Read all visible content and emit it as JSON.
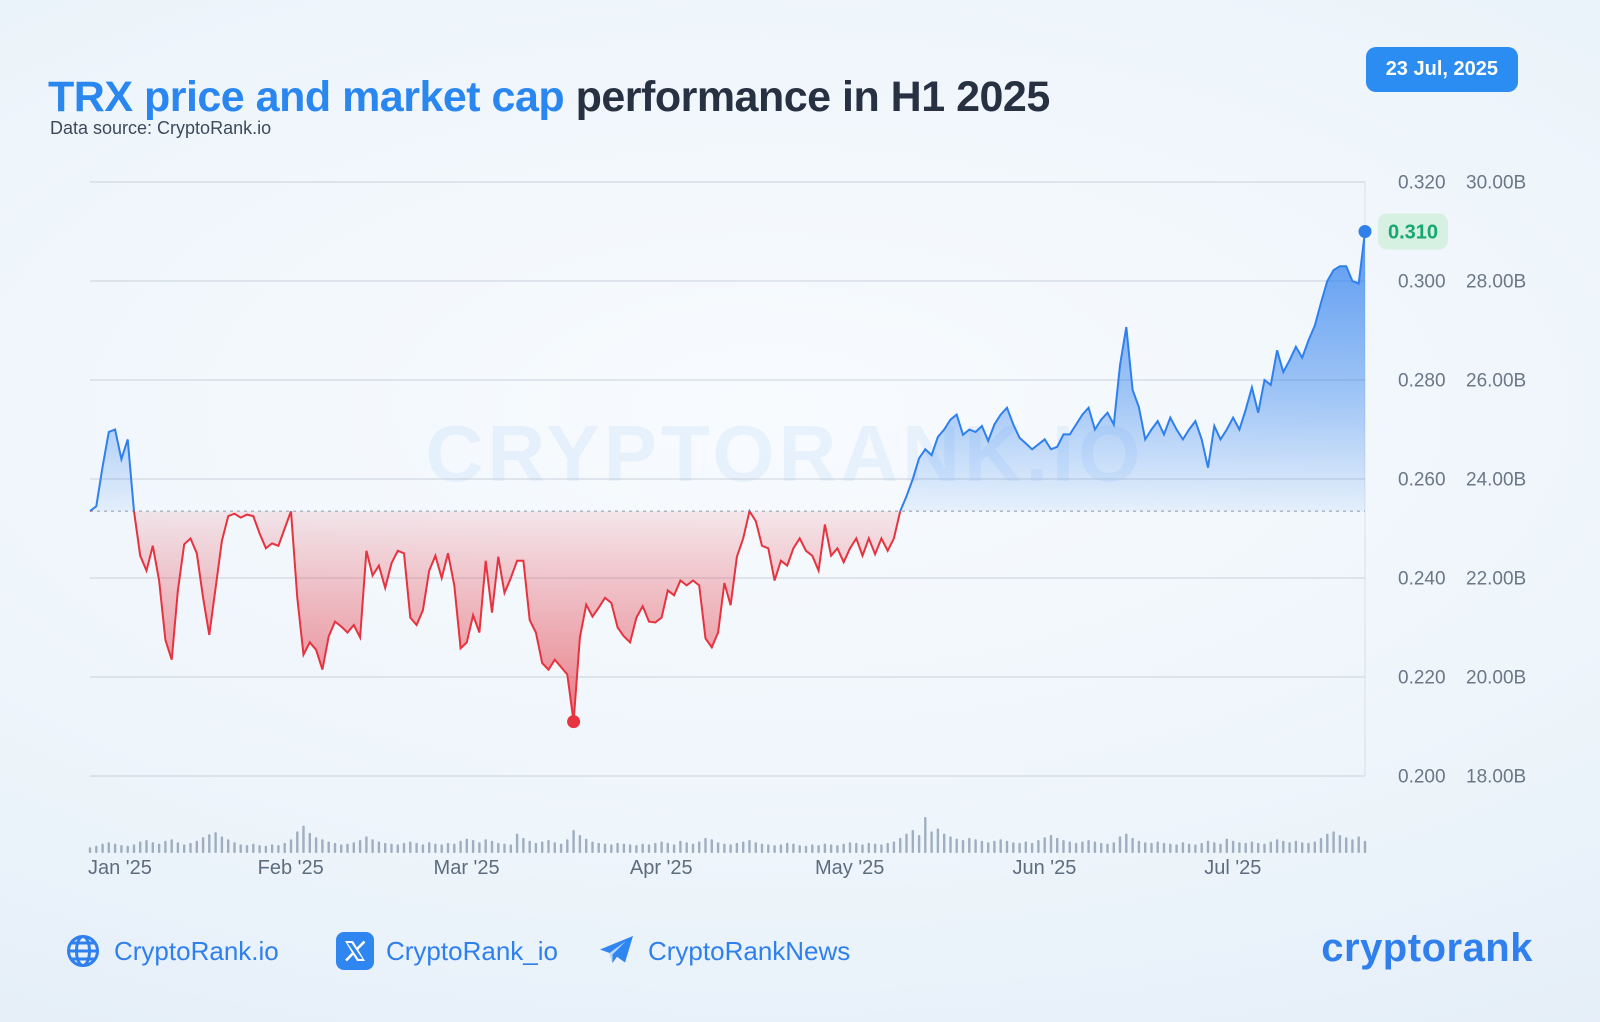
{
  "header": {
    "title_highlight": "TRX price and market cap",
    "title_rest": " performance in H1 2025",
    "subtitle": "Data source: CryptoRank.io",
    "date_badge": "23 Jul, 2025"
  },
  "footer": {
    "links": [
      {
        "icon": "globe-icon",
        "label": "CryptoRank.io"
      },
      {
        "icon": "x-icon",
        "label": "CryptoRank_io"
      },
      {
        "icon": "telegram-icon",
        "label": "CryptoRankNews"
      }
    ],
    "logo": "cryptorank"
  },
  "colors": {
    "accent_blue": "#2b87f0",
    "line_blue": "#2f80ed",
    "line_red": "#e5333f",
    "badge_green_text": "#15a870",
    "badge_green_bg": "#d6f0e1",
    "axis_text": "#6b7787",
    "month_text": "#5d6c7f",
    "gridline": "#c2cad5",
    "volume_bar": "#8b9cb2",
    "watermark_blue": "#2f86f0"
  },
  "chart_data": {
    "type": "area",
    "title": "TRX price and market cap performance in H1 2025",
    "start_date": "2025-01-01",
    "end_date": "2025-07-23",
    "months": [
      "Jan '25",
      "Feb '25",
      "Mar '25",
      "Apr '25",
      "May '25",
      "Jun '25",
      "Jul '25"
    ],
    "month_start_day_index": [
      0,
      31,
      59,
      90,
      120,
      151,
      181
    ],
    "price_ticks": [
      "0.320",
      "0.300",
      "0.280",
      "0.260",
      "0.240",
      "0.220",
      "0.200"
    ],
    "mcap_ticks": [
      "30.00B",
      "28.00B",
      "26.00B",
      "24.00B",
      "22.00B",
      "20.00B",
      "18.00B"
    ],
    "price_axis_range": [
      0.2,
      0.32
    ],
    "baseline_price": 0.2535,
    "current_price_label": "0.310",
    "min_marker": {
      "day_index": 77,
      "price": 0.211
    },
    "last_marker": {
      "day_index": 203,
      "price": 0.31
    },
    "watermark": "CRYPTORANK.IO",
    "grid": true,
    "legend": "none",
    "prices": [
      0.2535,
      0.2545,
      0.2625,
      0.2695,
      0.27,
      0.264,
      0.268,
      0.2535,
      0.2445,
      0.2415,
      0.2465,
      0.2395,
      0.2275,
      0.2235,
      0.2375,
      0.2468,
      0.248,
      0.245,
      0.236,
      0.2285,
      0.238,
      0.2475,
      0.2525,
      0.253,
      0.2522,
      0.2528,
      0.2525,
      0.249,
      0.246,
      0.247,
      0.2465,
      0.25,
      0.2535,
      0.236,
      0.2245,
      0.227,
      0.2255,
      0.2215,
      0.2282,
      0.2312,
      0.2302,
      0.229,
      0.2305,
      0.228,
      0.2455,
      0.2405,
      0.2425,
      0.238,
      0.243,
      0.2455,
      0.245,
      0.232,
      0.2305,
      0.2335,
      0.2415,
      0.2445,
      0.24,
      0.245,
      0.2385,
      0.2258,
      0.227,
      0.2325,
      0.229,
      0.2435,
      0.233,
      0.2443,
      0.237,
      0.24,
      0.2435,
      0.2435,
      0.2315,
      0.229,
      0.2228,
      0.2215,
      0.2235,
      0.222,
      0.2205,
      0.211,
      0.228,
      0.2346,
      0.2322,
      0.234,
      0.236,
      0.235,
      0.23,
      0.2282,
      0.227,
      0.232,
      0.2343,
      0.2312,
      0.231,
      0.232,
      0.2375,
      0.2365,
      0.2395,
      0.2385,
      0.2395,
      0.2385,
      0.2278,
      0.226,
      0.229,
      0.239,
      0.2345,
      0.2443,
      0.248,
      0.2535,
      0.2515,
      0.2465,
      0.246,
      0.2395,
      0.2435,
      0.2425,
      0.246,
      0.248,
      0.2455,
      0.2445,
      0.2415,
      0.2508,
      0.2445,
      0.246,
      0.2432,
      0.246,
      0.248,
      0.2445,
      0.248,
      0.2448,
      0.248,
      0.2455,
      0.248,
      0.2535,
      0.2565,
      0.26,
      0.2642,
      0.266,
      0.2648,
      0.2685,
      0.27,
      0.272,
      0.273,
      0.2689,
      0.27,
      0.2695,
      0.2707,
      0.2677,
      0.271,
      0.273,
      0.2744,
      0.271,
      0.2683,
      0.2672,
      0.266,
      0.267,
      0.268,
      0.266,
      0.2665,
      0.269,
      0.269,
      0.271,
      0.273,
      0.2744,
      0.27,
      0.272,
      0.2734,
      0.271,
      0.283,
      0.2907,
      0.278,
      0.2745,
      0.268,
      0.27,
      0.2717,
      0.269,
      0.2724,
      0.27,
      0.268,
      0.27,
      0.2717,
      0.268,
      0.2623,
      0.2707,
      0.268,
      0.27,
      0.2724,
      0.27,
      0.274,
      0.2785,
      0.2734,
      0.28,
      0.279,
      0.286,
      0.2816,
      0.284,
      0.2867,
      0.2845,
      0.288,
      0.291,
      0.2956,
      0.3,
      0.3022,
      0.303,
      0.303,
      0.3,
      0.2995,
      0.31
    ],
    "volume_rel": [
      0.16,
      0.2,
      0.26,
      0.3,
      0.26,
      0.22,
      0.2,
      0.24,
      0.32,
      0.36,
      0.3,
      0.26,
      0.34,
      0.38,
      0.3,
      0.24,
      0.28,
      0.34,
      0.44,
      0.52,
      0.58,
      0.46,
      0.38,
      0.3,
      0.24,
      0.22,
      0.26,
      0.22,
      0.2,
      0.24,
      0.22,
      0.28,
      0.38,
      0.6,
      0.76,
      0.56,
      0.44,
      0.38,
      0.32,
      0.28,
      0.24,
      0.26,
      0.3,
      0.36,
      0.46,
      0.38,
      0.32,
      0.28,
      0.26,
      0.24,
      0.28,
      0.32,
      0.28,
      0.24,
      0.3,
      0.26,
      0.24,
      0.28,
      0.26,
      0.34,
      0.4,
      0.36,
      0.3,
      0.38,
      0.34,
      0.28,
      0.26,
      0.24,
      0.54,
      0.42,
      0.34,
      0.28,
      0.32,
      0.36,
      0.3,
      0.26,
      0.38,
      0.64,
      0.5,
      0.4,
      0.32,
      0.28,
      0.26,
      0.24,
      0.28,
      0.26,
      0.24,
      0.22,
      0.26,
      0.24,
      0.28,
      0.32,
      0.28,
      0.24,
      0.34,
      0.3,
      0.26,
      0.32,
      0.42,
      0.38,
      0.3,
      0.26,
      0.24,
      0.28,
      0.32,
      0.36,
      0.3,
      0.26,
      0.24,
      0.22,
      0.24,
      0.28,
      0.26,
      0.22,
      0.2,
      0.24,
      0.22,
      0.26,
      0.24,
      0.22,
      0.26,
      0.3,
      0.28,
      0.24,
      0.28,
      0.26,
      0.24,
      0.28,
      0.32,
      0.42,
      0.54,
      0.64,
      0.5,
      1.0,
      0.6,
      0.68,
      0.54,
      0.46,
      0.4,
      0.36,
      0.42,
      0.38,
      0.34,
      0.3,
      0.34,
      0.38,
      0.34,
      0.3,
      0.28,
      0.32,
      0.28,
      0.36,
      0.44,
      0.5,
      0.42,
      0.36,
      0.32,
      0.28,
      0.32,
      0.36,
      0.32,
      0.28,
      0.26,
      0.3,
      0.46,
      0.54,
      0.42,
      0.34,
      0.3,
      0.28,
      0.32,
      0.28,
      0.26,
      0.24,
      0.3,
      0.26,
      0.24,
      0.28,
      0.34,
      0.3,
      0.26,
      0.4,
      0.34,
      0.3,
      0.28,
      0.32,
      0.28,
      0.26,
      0.32,
      0.38,
      0.34,
      0.3,
      0.34,
      0.3,
      0.28,
      0.32,
      0.42,
      0.54,
      0.6,
      0.5,
      0.44,
      0.38,
      0.46,
      0.34
    ]
  }
}
